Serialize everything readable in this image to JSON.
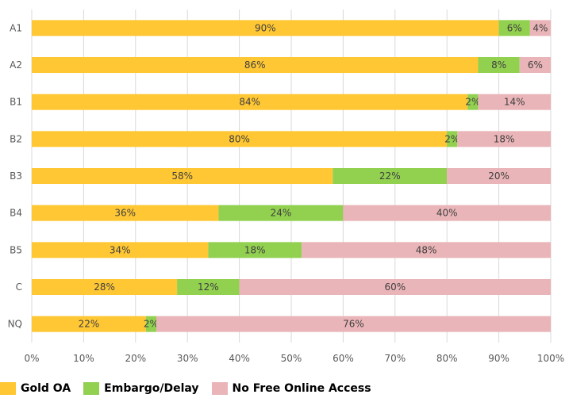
{
  "chart_data": {
    "type": "bar",
    "orientation": "horizontal",
    "stacked": true,
    "categories": [
      "A1",
      "A2",
      "B1",
      "B2",
      "B3",
      "B4",
      "B5",
      "C",
      "NQ"
    ],
    "series": [
      {
        "name": "Gold OA",
        "color": "#FFC733",
        "values": [
          90,
          86,
          84,
          80,
          58,
          36,
          34,
          28,
          22
        ]
      },
      {
        "name": "Embargo/Delay",
        "color": "#92D050",
        "values": [
          6,
          8,
          2,
          2,
          22,
          24,
          18,
          12,
          2
        ]
      },
      {
        "name": "No Free Online Access",
        "color": "#EAB5B8",
        "values": [
          4,
          6,
          14,
          18,
          20,
          40,
          48,
          60,
          76
        ]
      }
    ],
    "xlim": [
      0,
      100
    ],
    "x_ticks": [
      "0%",
      "10%",
      "20%",
      "30%",
      "40%",
      "50%",
      "60%",
      "70%",
      "80%",
      "90%",
      "100%"
    ],
    "value_suffix": "%",
    "grid": "vertical",
    "legend_position": "bottom-left"
  }
}
